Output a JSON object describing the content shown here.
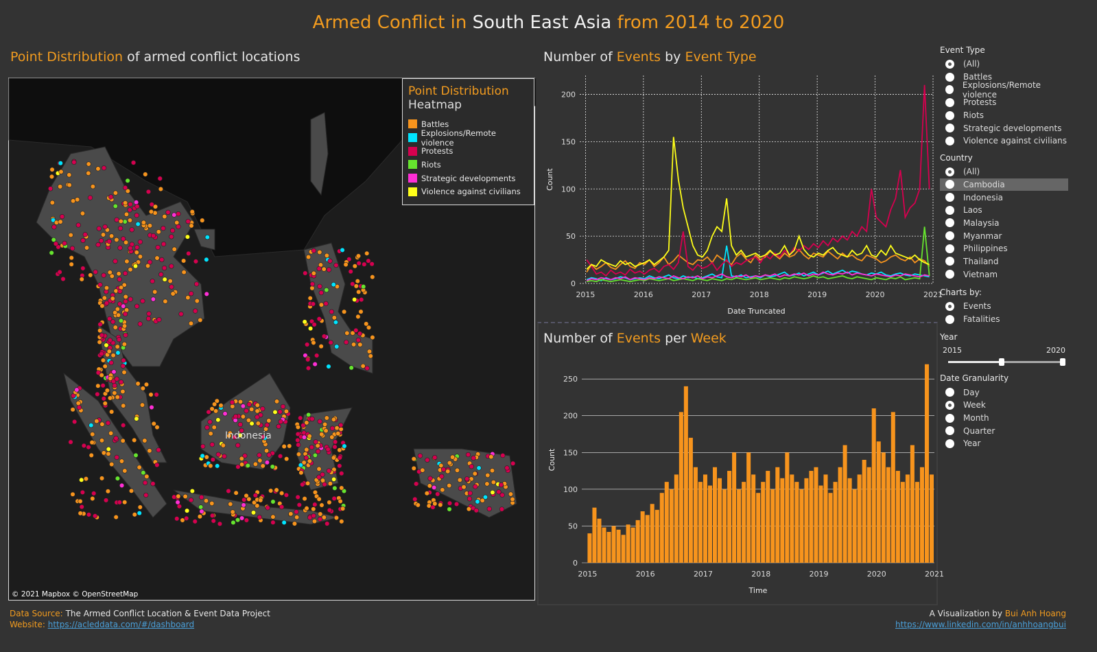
{
  "title": {
    "part1": "Armed Conflict in",
    "part2": "South East Asia",
    "part3": "from 2014 to 2020"
  },
  "map_section": {
    "title_a": "Point Distribution",
    "title_b": "of armed conflict locations",
    "label_indonesia": "Indonesia",
    "credit": "© 2021 Mapbox © OpenStreetMap"
  },
  "legend": {
    "title1": "Point Distribution",
    "title2": "Heatmap",
    "items": [
      {
        "label": "Battles",
        "color": "#f7941d"
      },
      {
        "label": "Explosions/Remote violence",
        "color": "#00e5ff"
      },
      {
        "label": "Protests",
        "color": "#d6004f"
      },
      {
        "label": "Riots",
        "color": "#66e52e"
      },
      {
        "label": "Strategic developments",
        "color": "#ff2ed6"
      },
      {
        "label": "Violence against civilians",
        "color": "#ffff1a"
      }
    ]
  },
  "line_section": {
    "title_a": "Number of",
    "title_b": "Events",
    "title_c": "by",
    "title_d": "Event Type"
  },
  "bar_section": {
    "title_a": "Number of",
    "title_b": "Events",
    "title_c": "per",
    "title_d": "Week"
  },
  "filters": {
    "event_type": {
      "label": "Event Type",
      "options": [
        "(All)",
        "Battles",
        "Explosions/Remote violence",
        "Protests",
        "Riots",
        "Strategic developments",
        "Violence against civilians"
      ],
      "selected": "(All)"
    },
    "country": {
      "label": "Country",
      "options": [
        "(All)",
        "Cambodia",
        "Indonesia",
        "Laos",
        "Malaysia",
        "Myanmar",
        "Philippines",
        "Thailand",
        "Vietnam"
      ],
      "selected": "(All)",
      "hovered": "Cambodia"
    },
    "charts_by": {
      "label": "Charts by:",
      "options": [
        "Events",
        "Fatalities"
      ],
      "selected": "Events"
    },
    "year": {
      "label": "Year",
      "min": "2015",
      "max": "2020",
      "range": [
        2015,
        2020
      ]
    },
    "date_granularity": {
      "label": "Date Granularity",
      "options": [
        "Day",
        "Week",
        "Month",
        "Quarter",
        "Year"
      ],
      "selected": "Week"
    }
  },
  "footer": {
    "source_label": "Data Source:",
    "source": "The Armed Conflict Location & Event Data Project",
    "website_label": "Website:",
    "website": "https://acleddata.com/#/dashboard",
    "viz_label": "A Visualization by",
    "author": "Bui Anh Hoang",
    "linkedin": "https://www.linkedin.com/in/anhhoangbui"
  },
  "chart_data": [
    {
      "type": "line",
      "xlabel": "Date Truncated",
      "ylabel": "Count",
      "xlim": [
        2014.9,
        2021
      ],
      "ylim": [
        0,
        220
      ],
      "xticks": [
        "2015",
        "2016",
        "2017",
        "2018",
        "2019",
        "2020",
        "2021"
      ],
      "yticks": [
        0,
        50,
        100,
        150,
        200
      ],
      "grid": true,
      "x_start": "2015-01",
      "x_step": "month",
      "series": [
        {
          "name": "Battles",
          "color": "#f7941d",
          "values": [
            12,
            20,
            15,
            18,
            22,
            17,
            15,
            20,
            24,
            18,
            16,
            22,
            20,
            25,
            18,
            22,
            28,
            20,
            24,
            30,
            26,
            22,
            20,
            25,
            24,
            28,
            22,
            30,
            26,
            24,
            20,
            28,
            32,
            26,
            22,
            30,
            25,
            28,
            34,
            30,
            26,
            32,
            28,
            30,
            36,
            30,
            26,
            32,
            30,
            28,
            34,
            30,
            26,
            32,
            28,
            30,
            26,
            24,
            30,
            28,
            26,
            22,
            24,
            28,
            30,
            26,
            24,
            28,
            22,
            26,
            24,
            18
          ]
        },
        {
          "name": "Explosions/Remote violence",
          "color": "#00e5ff",
          "values": [
            4,
            6,
            5,
            3,
            6,
            4,
            5,
            7,
            6,
            4,
            5,
            6,
            5,
            8,
            6,
            5,
            7,
            9,
            6,
            5,
            8,
            6,
            7,
            5,
            6,
            8,
            10,
            7,
            6,
            40,
            8,
            7,
            9,
            6,
            7,
            8,
            6,
            9,
            7,
            8,
            10,
            12,
            8,
            9,
            11,
            8,
            10,
            12,
            9,
            11,
            13,
            10,
            12,
            14,
            11,
            13,
            12,
            10,
            9,
            11,
            10,
            12,
            9,
            8,
            10,
            11,
            9,
            8,
            10,
            9,
            8,
            7
          ]
        },
        {
          "name": "Protests",
          "color": "#d6004f",
          "values": [
            25,
            18,
            10,
            12,
            8,
            14,
            10,
            12,
            9,
            15,
            11,
            13,
            10,
            14,
            16,
            12,
            18,
            20,
            15,
            22,
            55,
            18,
            14,
            20,
            16,
            18,
            22,
            14,
            20,
            25,
            18,
            22,
            20,
            24,
            26,
            28,
            22,
            30,
            26,
            32,
            28,
            35,
            30,
            38,
            34,
            40,
            36,
            42,
            38,
            45,
            40,
            48,
            44,
            50,
            46,
            55,
            50,
            60,
            55,
            100,
            70,
            65,
            60,
            78,
            90,
            120,
            70,
            80,
            85,
            100,
            210,
            100
          ]
        },
        {
          "name": "Riots",
          "color": "#66e52e",
          "values": [
            2,
            3,
            2,
            4,
            3,
            2,
            3,
            4,
            3,
            2,
            3,
            4,
            3,
            5,
            4,
            3,
            4,
            5,
            3,
            4,
            5,
            4,
            3,
            5,
            4,
            3,
            5,
            4,
            3,
            5,
            4,
            6,
            5,
            4,
            5,
            6,
            4,
            5,
            6,
            5,
            4,
            6,
            5,
            7,
            6,
            5,
            6,
            8,
            6,
            7,
            5,
            6,
            7,
            8,
            6,
            5,
            7,
            6,
            5,
            4,
            6,
            5,
            4,
            6,
            5,
            7,
            4,
            5,
            6,
            5,
            60,
            8
          ]
        },
        {
          "name": "Strategic developments",
          "color": "#ff2ed6",
          "values": [
            3,
            5,
            4,
            6,
            5,
            4,
            6,
            5,
            7,
            4,
            6,
            5,
            4,
            6,
            5,
            7,
            6,
            5,
            8,
            6,
            5,
            7,
            6,
            8,
            5,
            7,
            6,
            8,
            10,
            7,
            6,
            8,
            7,
            9,
            6,
            8,
            7,
            9,
            8,
            10,
            7,
            9,
            8,
            10,
            9,
            11,
            8,
            10,
            9,
            12,
            10,
            9,
            11,
            10,
            12,
            9,
            11,
            10,
            9,
            8,
            10,
            9,
            8,
            7,
            9,
            8,
            10,
            9,
            8,
            7,
            9,
            8
          ]
        },
        {
          "name": "Violence against civilians",
          "color": "#ffff1a",
          "values": [
            15,
            20,
            18,
            25,
            22,
            20,
            18,
            24,
            20,
            22,
            18,
            20,
            22,
            25,
            20,
            24,
            28,
            35,
            155,
            110,
            80,
            60,
            40,
            30,
            28,
            35,
            50,
            60,
            55,
            90,
            40,
            30,
            35,
            28,
            30,
            32,
            28,
            30,
            35,
            30,
            32,
            40,
            30,
            35,
            50,
            36,
            30,
            28,
            32,
            30,
            35,
            38,
            32,
            30,
            28,
            35,
            30,
            32,
            40,
            30,
            28,
            35,
            30,
            40,
            32,
            30,
            28,
            26,
            30,
            25,
            22,
            20
          ]
        }
      ]
    },
    {
      "type": "bar",
      "xlabel": "Time",
      "ylabel": "Count",
      "xlim": [
        2014.9,
        2021
      ],
      "ylim": [
        0,
        280
      ],
      "xticks": [
        "2015",
        "2016",
        "2017",
        "2018",
        "2019",
        "2020",
        "2021"
      ],
      "yticks": [
        0,
        50,
        100,
        150,
        200,
        250
      ],
      "grid": true,
      "color": "#f7941d",
      "x_start": "2015-01",
      "x_step": "month",
      "values": [
        40,
        75,
        60,
        48,
        42,
        50,
        45,
        38,
        52,
        48,
        58,
        70,
        65,
        80,
        72,
        95,
        110,
        100,
        120,
        205,
        240,
        170,
        130,
        110,
        120,
        105,
        130,
        115,
        100,
        125,
        150,
        100,
        110,
        150,
        120,
        95,
        110,
        125,
        100,
        130,
        115,
        150,
        120,
        110,
        100,
        115,
        125,
        130,
        105,
        120,
        95,
        110,
        130,
        160,
        115,
        100,
        120,
        140,
        130,
        210,
        165,
        150,
        130,
        205,
        125,
        110,
        120,
        160,
        110,
        130,
        270,
        120
      ]
    }
  ]
}
